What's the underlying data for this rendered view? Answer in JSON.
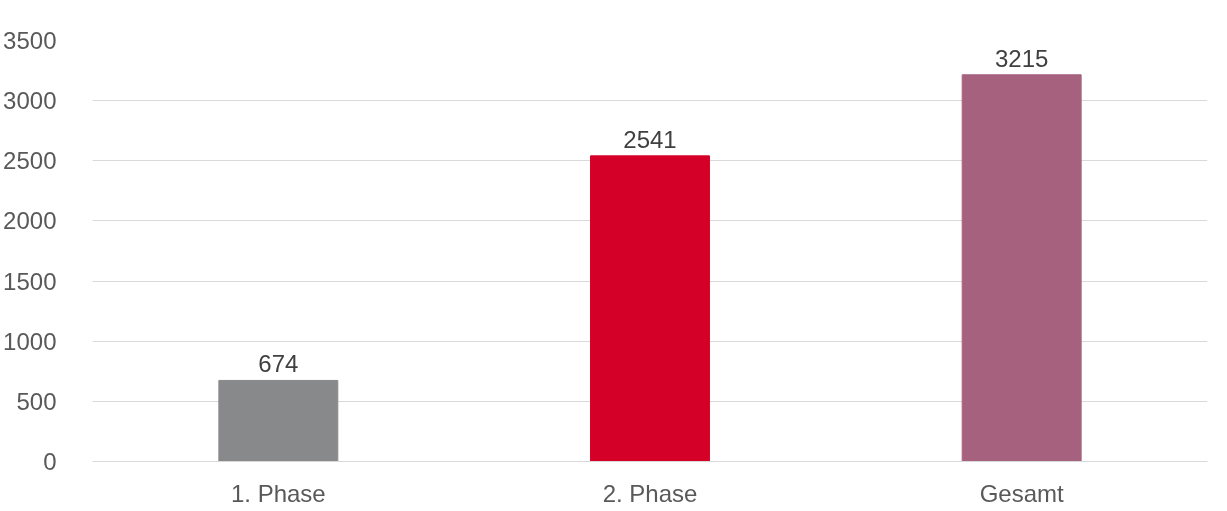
{
  "chart_data": {
    "type": "bar",
    "categories": [
      "1. Phase",
      "2. Phase",
      "Gesamt"
    ],
    "values": [
      674,
      2541,
      3215
    ],
    "colors": [
      "#88898b",
      "#d50028",
      "#a6617f"
    ],
    "ylim": [
      0,
      3500
    ],
    "yticks": [
      0,
      500,
      1000,
      1500,
      2000,
      2500,
      3000,
      3500
    ],
    "grid": "y",
    "data_labels": true
  }
}
